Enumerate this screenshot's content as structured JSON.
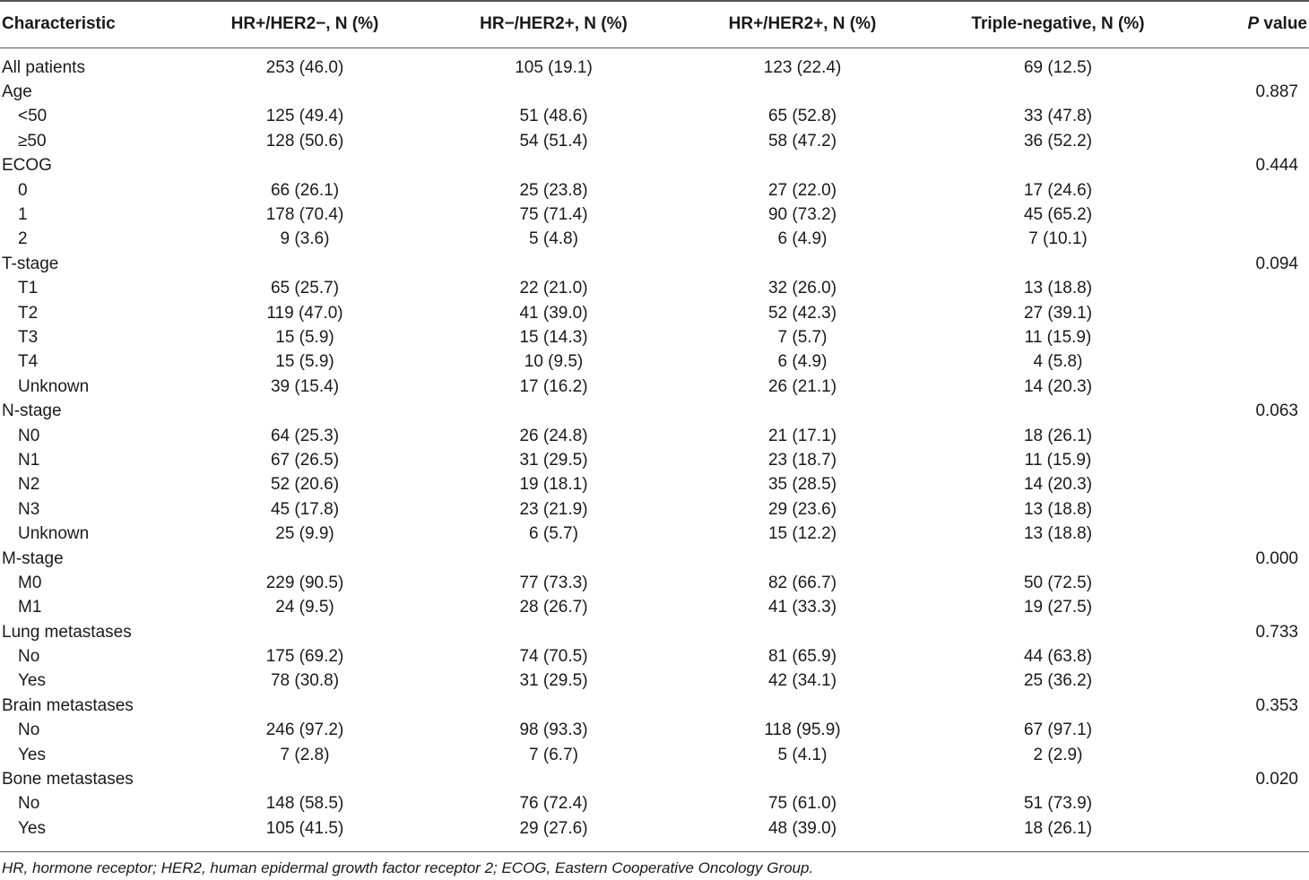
{
  "table": {
    "headers": {
      "characteristic": "Characteristic",
      "col1": "HR+/HER2−, N (%)",
      "col2": "HR−/HER2+, N (%)",
      "col3": "HR+/HER2+, N (%)",
      "col4": "Triple-negative, N (%)",
      "p_italic": "P",
      "p_rest": " value"
    },
    "rows": [
      {
        "label": "All patients",
        "sub": false,
        "v1": "253 (46.0)",
        "v2": "105 (19.1)",
        "v3": "123 (22.4)",
        "v4": "69 (12.5)",
        "p": ""
      },
      {
        "label": "Age",
        "sub": false,
        "v1": "",
        "v2": "",
        "v3": "",
        "v4": "",
        "p": "0.887"
      },
      {
        "label": "<50",
        "sub": true,
        "v1": "125 (49.4)",
        "v2": "51 (48.6)",
        "v3": "65 (52.8)",
        "v4": "33 (47.8)",
        "p": ""
      },
      {
        "label": "≥50",
        "sub": true,
        "v1": "128 (50.6)",
        "v2": "54 (51.4)",
        "v3": "58 (47.2)",
        "v4": "36 (52.2)",
        "p": ""
      },
      {
        "label": "ECOG",
        "sub": false,
        "v1": "",
        "v2": "",
        "v3": "",
        "v4": "",
        "p": "0.444"
      },
      {
        "label": "0",
        "sub": true,
        "v1": "66 (26.1)",
        "v2": "25 (23.8)",
        "v3": "27 (22.0)",
        "v4": "17 (24.6)",
        "p": ""
      },
      {
        "label": "1",
        "sub": true,
        "v1": "178 (70.4)",
        "v2": "75 (71.4)",
        "v3": "90 (73.2)",
        "v4": "45 (65.2)",
        "p": ""
      },
      {
        "label": "2",
        "sub": true,
        "v1": "9 (3.6)",
        "v2": "5 (4.8)",
        "v3": "6 (4.9)",
        "v4": "7 (10.1)",
        "p": ""
      },
      {
        "label": "T-stage",
        "sub": false,
        "v1": "",
        "v2": "",
        "v3": "",
        "v4": "",
        "p": "0.094"
      },
      {
        "label": "T1",
        "sub": true,
        "v1": "65 (25.7)",
        "v2": "22 (21.0)",
        "v3": "32 (26.0)",
        "v4": "13 (18.8)",
        "p": ""
      },
      {
        "label": "T2",
        "sub": true,
        "v1": "119 (47.0)",
        "v2": "41 (39.0)",
        "v3": "52 (42.3)",
        "v4": "27 (39.1)",
        "p": ""
      },
      {
        "label": "T3",
        "sub": true,
        "v1": "15 (5.9)",
        "v2": "15 (14.3)",
        "v3": "7 (5.7)",
        "v4": "11 (15.9)",
        "p": ""
      },
      {
        "label": "T4",
        "sub": true,
        "v1": "15 (5.9)",
        "v2": "10 (9.5)",
        "v3": "6 (4.9)",
        "v4": "4 (5.8)",
        "p": ""
      },
      {
        "label": "Unknown",
        "sub": true,
        "v1": "39 (15.4)",
        "v2": "17 (16.2)",
        "v3": "26 (21.1)",
        "v4": "14 (20.3)",
        "p": ""
      },
      {
        "label": "N-stage",
        "sub": false,
        "v1": "",
        "v2": "",
        "v3": "",
        "v4": "",
        "p": "0.063"
      },
      {
        "label": "N0",
        "sub": true,
        "v1": "64 (25.3)",
        "v2": "26 (24.8)",
        "v3": "21 (17.1)",
        "v4": "18 (26.1)",
        "p": ""
      },
      {
        "label": "N1",
        "sub": true,
        "v1": "67 (26.5)",
        "v2": "31 (29.5)",
        "v3": "23 (18.7)",
        "v4": "11 (15.9)",
        "p": ""
      },
      {
        "label": "N2",
        "sub": true,
        "v1": "52 (20.6)",
        "v2": "19 (18.1)",
        "v3": "35 (28.5)",
        "v4": "14 (20.3)",
        "p": ""
      },
      {
        "label": "N3",
        "sub": true,
        "v1": "45 (17.8)",
        "v2": "23 (21.9)",
        "v3": "29 (23.6)",
        "v4": "13 (18.8)",
        "p": ""
      },
      {
        "label": "Unknown",
        "sub": true,
        "v1": "25 (9.9)",
        "v2": "6 (5.7)",
        "v3": "15 (12.2)",
        "v4": "13 (18.8)",
        "p": ""
      },
      {
        "label": "M-stage",
        "sub": false,
        "v1": "",
        "v2": "",
        "v3": "",
        "v4": "",
        "p": "0.000"
      },
      {
        "label": "M0",
        "sub": true,
        "v1": "229 (90.5)",
        "v2": "77 (73.3)",
        "v3": "82 (66.7)",
        "v4": "50 (72.5)",
        "p": ""
      },
      {
        "label": "M1",
        "sub": true,
        "v1": "24 (9.5)",
        "v2": "28 (26.7)",
        "v3": "41 (33.3)",
        "v4": "19 (27.5)",
        "p": ""
      },
      {
        "label": "Lung metastases",
        "sub": false,
        "v1": "",
        "v2": "",
        "v3": "",
        "v4": "",
        "p": "0.733"
      },
      {
        "label": "No",
        "sub": true,
        "v1": "175 (69.2)",
        "v2": "74 (70.5)",
        "v3": "81 (65.9)",
        "v4": "44 (63.8)",
        "p": ""
      },
      {
        "label": "Yes",
        "sub": true,
        "v1": "78 (30.8)",
        "v2": "31 (29.5)",
        "v3": "42 (34.1)",
        "v4": "25 (36.2)",
        "p": ""
      },
      {
        "label": "Brain metastases",
        "sub": false,
        "v1": "",
        "v2": "",
        "v3": "",
        "v4": "",
        "p": "0.353"
      },
      {
        "label": "No",
        "sub": true,
        "v1": "246 (97.2)",
        "v2": "98 (93.3)",
        "v3": "118 (95.9)",
        "v4": "67 (97.1)",
        "p": ""
      },
      {
        "label": "Yes",
        "sub": true,
        "v1": "7 (2.8)",
        "v2": "7 (6.7)",
        "v3": "5 (4.1)",
        "v4": "2 (2.9)",
        "p": ""
      },
      {
        "label": "Bone metastases",
        "sub": false,
        "v1": "",
        "v2": "",
        "v3": "",
        "v4": "",
        "p": "0.020"
      },
      {
        "label": "No",
        "sub": true,
        "v1": "148 (58.5)",
        "v2": "76 (72.4)",
        "v3": "75 (61.0)",
        "v4": "51 (73.9)",
        "p": ""
      },
      {
        "label": "Yes",
        "sub": true,
        "v1": "105 (41.5)",
        "v2": "29 (27.6)",
        "v3": "48 (39.0)",
        "v4": "18 (26.1)",
        "p": ""
      }
    ]
  },
  "footnote": "HR, hormone receptor; HER2, human epidermal growth factor receptor 2; ECOG, Eastern Cooperative Oncology Group."
}
